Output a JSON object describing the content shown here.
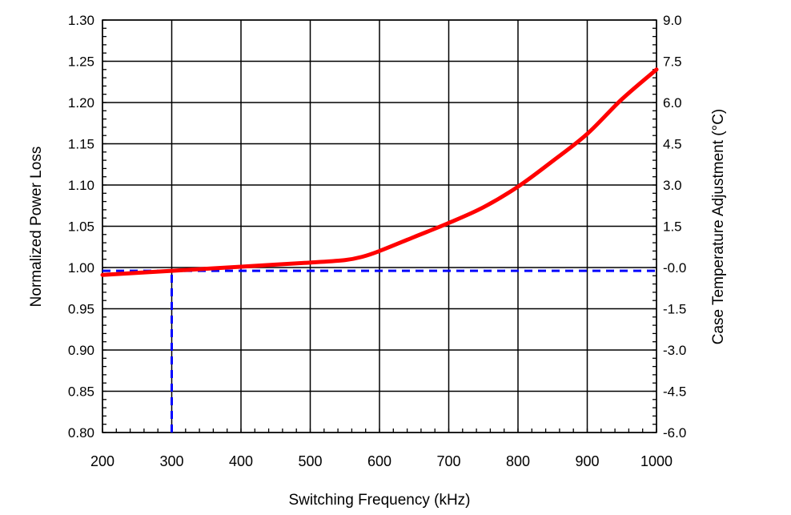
{
  "chart_data": {
    "type": "line",
    "title": "",
    "xlabel": "Switching Frequency (kHz)",
    "ylabel": "Normalized Power Loss",
    "y2label": "Case Temperature Adjustment (°C)",
    "xlim": [
      200,
      1000
    ],
    "ylim": [
      0.8,
      1.3
    ],
    "y2lim": [
      -6.0,
      9.0
    ],
    "grid": true,
    "x_ticks": [
      "200",
      "300",
      "400",
      "500",
      "600",
      "700",
      "800",
      "900",
      "1000"
    ],
    "y_ticks": [
      "0.80",
      "0.85",
      "0.90",
      "0.95",
      "1.00",
      "1.05",
      "1.10",
      "1.15",
      "1.20",
      "1.25",
      "1.30"
    ],
    "y2_ticks": [
      "-6.0",
      "-4.5",
      "-3.0",
      "-1.5",
      "-0.0",
      "1.5",
      "3.0",
      "4.5",
      "6.0",
      "7.5",
      "9.0"
    ],
    "series": [
      {
        "name": "Normalized Power Loss",
        "color": "#ff0000",
        "x": [
          200,
          300,
          400,
          500,
          550,
          575,
          600,
          650,
          700,
          750,
          800,
          850,
          900,
          950,
          1000
        ],
        "y": [
          0.991,
          0.996,
          1.001,
          1.006,
          1.009,
          1.013,
          1.02,
          1.037,
          1.054,
          1.073,
          1.098,
          1.129,
          1.162,
          1.204,
          1.24
        ]
      }
    ],
    "annotations": [
      {
        "type": "dashed-hline",
        "color": "#0000ff",
        "y": 0.996,
        "x_from": 200,
        "x_to": 1000
      },
      {
        "type": "dashed-vline",
        "color": "#0000ff",
        "x": 300,
        "y_from": 0.8,
        "y_to": 0.996
      }
    ]
  }
}
